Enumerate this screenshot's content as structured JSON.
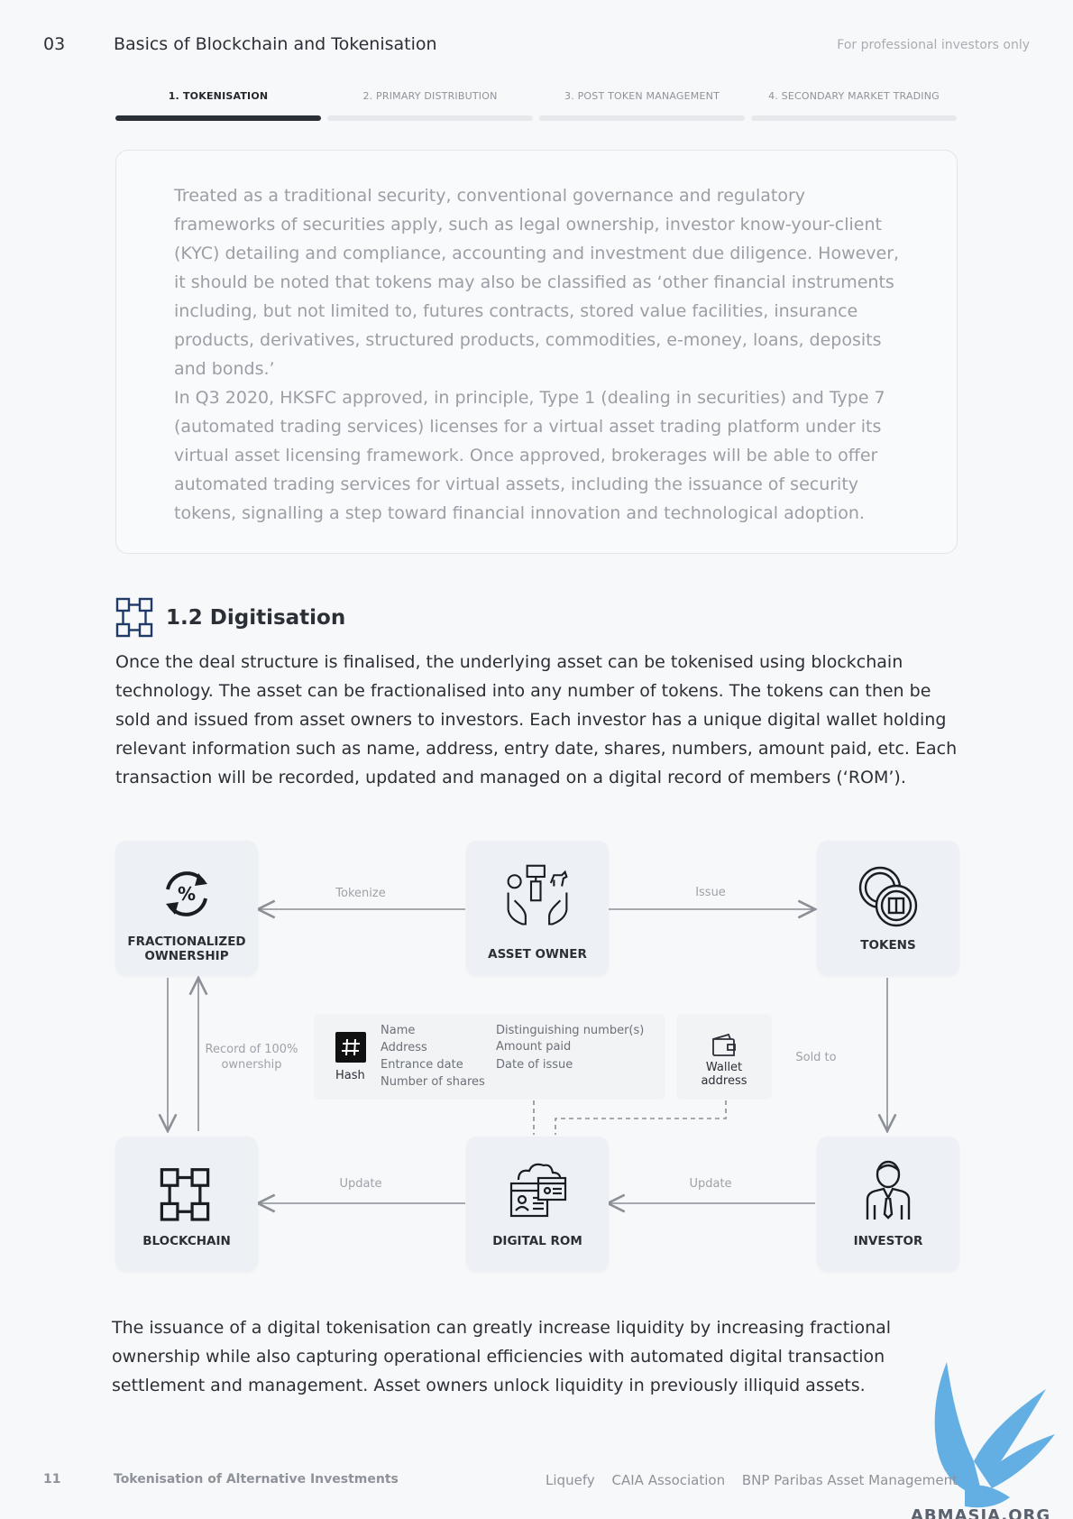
{
  "header": {
    "section_number": "03",
    "title": "Basics of Blockchain and Tokenisation",
    "note": "For professional investors only"
  },
  "tabs": [
    {
      "label": "1. TOKENISATION",
      "active": true
    },
    {
      "label": "2. PRIMARY DISTRIBUTION",
      "active": false
    },
    {
      "label": "3. POST TOKEN MANAGEMENT",
      "active": false
    },
    {
      "label": "4. SECONDARY MARKET TRADING",
      "active": false
    }
  ],
  "quote": {
    "paragraphs": [
      "Treated as a traditional security, conventional governance and regulatory frameworks of securities apply, such as legal ownership, investor know-your-client (KYC) detailing and compliance, accounting and investment due diligence. However, it should be noted that tokens may also be classified as ‘other financial instruments including, but not limited to, futures contracts, stored value facilities, insurance products, derivatives, structured products, commodities, e-money, loans, deposits and bonds.’",
      "In Q3 2020, HKSFC approved, in principle, Type 1 (dealing in securities) and Type 7 (automated trading services) licenses for a virtual asset trading platform under its virtual asset licensing framework. Once approved, brokerages will be able to offer automated trading services for virtual assets, including the issuance of security tokens, signalling a step toward financial innovation and technological adoption."
    ]
  },
  "section": {
    "icon": "blockchain-icon",
    "title": "1.2 Digitisation",
    "body": "Once the deal structure is finalised, the underlying asset can be tokenised using blockchain technology. The asset can be fractionalised into any number of tokens. The tokens can then be sold and issued from asset owners to investors. Each investor has a unique digital wallet holding relevant information such as name, address, entry date, shares, numbers, amount paid, etc. Each transaction will be recorded, updated and managed on a digital record of members (‘ROM’)."
  },
  "diagram": {
    "nodes": {
      "fractionalized": {
        "label_line1": "FRACTIONALIZED",
        "label_line2": "OWNERSHIP",
        "icon": "percent-cycle-icon"
      },
      "asset_owner": {
        "label": "ASSET OWNER",
        "icon": "hands-assets-icon"
      },
      "tokens": {
        "label": "TOKENS",
        "icon": "coins-icon"
      },
      "blockchain": {
        "label": "BLOCKCHAIN",
        "icon": "blockchain-icon"
      },
      "digital_rom": {
        "label": "DIGITAL ROM",
        "icon": "digital-record-icon"
      },
      "investor": {
        "label": "INVESTOR",
        "icon": "person-icon"
      }
    },
    "edges": {
      "tokenize": "Tokenize",
      "issue": "Issue",
      "record_line1": "Record of 100%",
      "record_line2": "ownership",
      "sold_to": "Sold to",
      "update_left": "Update",
      "update_right": "Update"
    },
    "info": {
      "hash_label": "Hash",
      "fields_col1": [
        "Name",
        "Address",
        "Entrance date",
        "Number of shares"
      ],
      "fields_col2": [
        "Distinguishing number(s)",
        "Amount paid",
        "Date of issue"
      ],
      "wallet_line1": "Wallet",
      "wallet_line2": "address"
    }
  },
  "closing": "The issuance of a digital tokenisation can greatly increase liquidity by increasing fractional ownership while also capturing operational efficiencies with automated digital transaction settlement and management. Asset owners unlock liquidity in previously illiquid assets.",
  "footer": {
    "page": "11",
    "title": "Tokenisation of Alternative Investments",
    "orgs": [
      "Liquefy",
      "CAIA Association",
      "BNP Paribas Asset Management"
    ]
  },
  "watermark": {
    "text": "ABMASIA.ORG"
  },
  "colors": {
    "text": "#2b2f36",
    "muted": "#9a9ea5",
    "card": "#edf1f6",
    "watermark": "#4aa3e0"
  }
}
